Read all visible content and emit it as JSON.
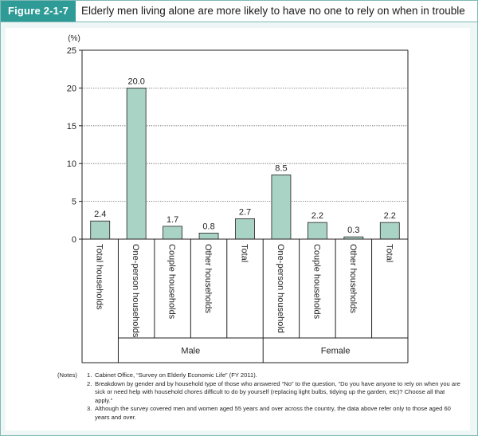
{
  "figure": {
    "label": "Figure 2-1-7",
    "title": "Elderly men living alone are more likely to have no one to rely on when in trouble"
  },
  "chart_data": {
    "type": "bar",
    "y_unit_label": "(%)",
    "ylim": [
      0,
      25
    ],
    "yticks": [
      "0",
      "5",
      "10",
      "15",
      "20",
      "25"
    ],
    "grid": "dotted horizontal",
    "bar_color": "#a9d3c4",
    "categories": [
      "Total households",
      "One-person households",
      "Couple households",
      "Other households",
      "Total",
      "One-person household",
      "Couple households",
      "Other households",
      "Total"
    ],
    "values": [
      2.4,
      20.0,
      1.7,
      0.8,
      2.7,
      8.5,
      2.2,
      0.3,
      2.2
    ],
    "value_labels": [
      "2.4",
      "20.0",
      "1.7",
      "0.8",
      "2.7",
      "8.5",
      "2.2",
      "0.3",
      "2.2"
    ],
    "groups": [
      {
        "label": "Male"
      },
      {
        "label": "Female"
      }
    ]
  },
  "notes": {
    "lead": "(Notes)",
    "items": [
      {
        "num": "1.",
        "text": "Cabinet Office, “Survey on Elderly Economic Life” (FY 2011)."
      },
      {
        "num": "2.",
        "text": "Breakdown by gender and by household type of those who answered “No” to the question, “Do you have anyone to rely on when you are sick or need help with household chores difficult to do by yourself (replacing light bulbs, tidying up the garden, etc)? Choose all that apply.”"
      },
      {
        "num": "3.",
        "text": "Although the survey covered men and women aged 55 years and over across the country, the data above refer only to those aged 60 years and over."
      }
    ]
  }
}
